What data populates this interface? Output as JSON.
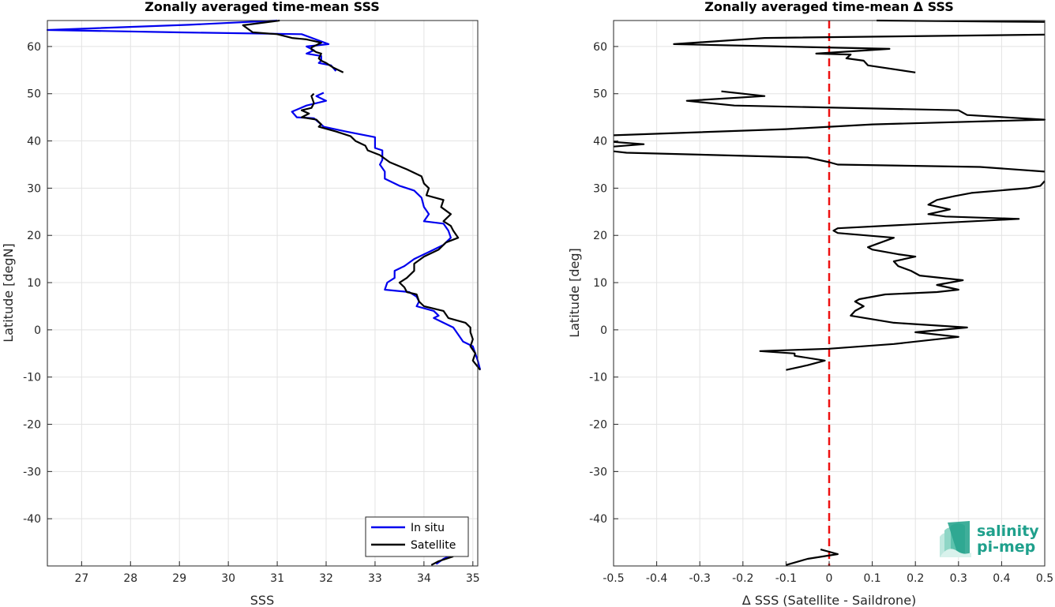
{
  "chart_data": [
    {
      "type": "line",
      "title": "Zonally averaged time-mean SSS",
      "xlabel": "SSS",
      "ylabel": "Latitude [degN]",
      "xlim": [
        26.3,
        35.1
      ],
      "ylim": [
        -50,
        65.5
      ],
      "xticks": [
        27,
        28,
        29,
        30,
        31,
        32,
        33,
        34,
        35
      ],
      "yticks": [
        -40,
        -30,
        -20,
        -10,
        0,
        10,
        20,
        30,
        40,
        50,
        60
      ],
      "grid": true,
      "legend": {
        "placement": "bottom-right",
        "entries": [
          "In situ",
          "Satellite"
        ]
      },
      "series": [
        {
          "name": "In situ",
          "color": "#0000ee",
          "segments": [
            [
              [
                31.0,
                65.5
              ],
              [
                29.2,
                64.6
              ],
              [
                26.3,
                63.5
              ],
              [
                29.0,
                63.0
              ],
              [
                31.5,
                62.6
              ],
              [
                32.05,
                60.5
              ],
              [
                31.6,
                60.0
              ],
              [
                31.75,
                59.2
              ],
              [
                31.6,
                58.5
              ],
              [
                31.9,
                58.0
              ],
              [
                31.9,
                57.0
              ],
              [
                31.85,
                56.5
              ],
              [
                32.1,
                56.0
              ],
              [
                32.2,
                54.8
              ]
            ],
            [
              [
                31.95,
                50.2
              ],
              [
                31.8,
                49.5
              ],
              [
                32.0,
                48.5
              ],
              [
                31.6,
                47.5
              ],
              [
                31.3,
                46.2
              ],
              [
                31.4,
                45.0
              ],
              [
                31.75,
                44.8
              ],
              [
                31.9,
                43.5
              ],
              [
                31.95,
                43.0
              ],
              [
                32.4,
                42.0
              ],
              [
                33.0,
                40.8
              ],
              [
                33.0,
                38.5
              ],
              [
                33.15,
                38.0
              ],
              [
                33.15,
                36.0
              ],
              [
                33.1,
                35.0
              ],
              [
                33.2,
                33.5
              ],
              [
                33.2,
                32.0
              ],
              [
                33.5,
                30.5
              ],
              [
                33.8,
                29.5
              ],
              [
                33.95,
                28.0
              ],
              [
                34.0,
                26.0
              ],
              [
                34.1,
                24.5
              ],
              [
                34.0,
                23.0
              ],
              [
                34.4,
                22.5
              ],
              [
                34.5,
                21.0
              ],
              [
                34.55,
                19.5
              ],
              [
                34.4,
                18.0
              ],
              [
                34.1,
                16.5
              ],
              [
                33.8,
                15.0
              ],
              [
                33.6,
                13.5
              ],
              [
                33.4,
                12.5
              ],
              [
                33.4,
                11.0
              ],
              [
                33.25,
                10.0
              ],
              [
                33.2,
                8.5
              ],
              [
                33.7,
                8.0
              ],
              [
                33.85,
                7.0
              ],
              [
                33.9,
                6.0
              ],
              [
                33.85,
                5.0
              ],
              [
                34.2,
                4.0
              ],
              [
                34.3,
                3.0
              ],
              [
                34.2,
                2.5
              ],
              [
                34.4,
                1.5
              ],
              [
                34.6,
                0.5
              ],
              [
                34.7,
                -1.0
              ],
              [
                34.8,
                -2.5
              ],
              [
                35.0,
                -3.5
              ],
              [
                35.05,
                -5.0
              ],
              [
                35.1,
                -6.5
              ],
              [
                35.15,
                -8.5
              ]
            ],
            [
              [
                34.55,
                -47.8
              ],
              [
                34.4,
                -48.5
              ],
              [
                34.25,
                -49.6
              ]
            ]
          ]
        },
        {
          "name": "Satellite",
          "color": "#000000",
          "segments": [
            [
              [
                31.05,
                65.5
              ],
              [
                30.3,
                64.5
              ],
              [
                30.5,
                63.0
              ],
              [
                31.0,
                62.6
              ],
              [
                31.3,
                61.8
              ],
              [
                31.6,
                61.5
              ],
              [
                31.9,
                60.8
              ],
              [
                31.7,
                59.8
              ],
              [
                31.7,
                59.4
              ],
              [
                31.8,
                58.8
              ],
              [
                31.9,
                58.5
              ],
              [
                31.85,
                57.5
              ],
              [
                31.9,
                57.0
              ],
              [
                32.0,
                56.5
              ],
              [
                32.15,
                55.5
              ],
              [
                32.35,
                54.5
              ]
            ],
            [
              [
                31.75,
                50.0
              ],
              [
                31.7,
                49.5
              ],
              [
                31.75,
                48.0
              ],
              [
                31.7,
                47.0
              ],
              [
                31.5,
                46.5
              ],
              [
                31.65,
                45.8
              ],
              [
                31.5,
                45.0
              ],
              [
                31.8,
                44.5
              ],
              [
                31.9,
                43.5
              ],
              [
                31.85,
                43.0
              ],
              [
                32.2,
                42.0
              ],
              [
                32.5,
                41.0
              ],
              [
                32.6,
                40.0
              ],
              [
                32.8,
                39.0
              ],
              [
                32.85,
                38.0
              ],
              [
                33.1,
                37.0
              ],
              [
                33.3,
                35.5
              ],
              [
                33.65,
                34.0
              ],
              [
                33.95,
                32.5
              ],
              [
                34.0,
                31.0
              ],
              [
                34.1,
                30.0
              ],
              [
                34.05,
                28.5
              ],
              [
                34.4,
                27.5
              ],
              [
                34.35,
                26.0
              ],
              [
                34.55,
                24.5
              ],
              [
                34.4,
                23.0
              ],
              [
                34.55,
                22.0
              ],
              [
                34.6,
                21.0
              ],
              [
                34.7,
                19.5
              ],
              [
                34.45,
                18.5
              ],
              [
                34.3,
                17.0
              ],
              [
                34.0,
                15.5
              ],
              [
                33.8,
                14.0
              ],
              [
                33.8,
                12.5
              ],
              [
                33.65,
                11.0
              ],
              [
                33.5,
                10.0
              ],
              [
                33.6,
                9.0
              ],
              [
                33.65,
                8.0
              ],
              [
                33.85,
                7.5
              ],
              [
                33.9,
                6.0
              ],
              [
                34.0,
                5.0
              ],
              [
                34.4,
                4.0
              ],
              [
                34.5,
                2.5
              ],
              [
                34.85,
                1.5
              ],
              [
                34.95,
                0.5
              ],
              [
                34.95,
                -0.5
              ],
              [
                35.0,
                -2.0
              ],
              [
                34.95,
                -3.5
              ],
              [
                35.05,
                -5.0
              ],
              [
                35.0,
                -6.5
              ],
              [
                35.15,
                -8.5
              ]
            ],
            [
              [
                34.6,
                -48.0
              ],
              [
                34.3,
                -49.0
              ],
              [
                34.15,
                -49.8
              ]
            ]
          ]
        }
      ]
    },
    {
      "type": "line",
      "title": "Zonally averaged time-mean Δ SSS",
      "xlabel": "Δ SSS (Satellite - Saildrone)",
      "ylabel": "Latitude [deg]",
      "xlim": [
        -0.5,
        0.5
      ],
      "ylim": [
        -50,
        65.5
      ],
      "xticks": [
        -0.5,
        -0.4,
        -0.3,
        -0.2,
        -0.1,
        0,
        0.1,
        0.2,
        0.3,
        0.4,
        0.5
      ],
      "xticklabels": [
        "-0.5",
        "-0.4",
        "-0.3",
        "-0.2",
        "-0.1",
        "0",
        "0.1",
        "0.2",
        "0.3",
        "0.4",
        "0.5"
      ],
      "yticks": [
        -40,
        -30,
        -20,
        -10,
        0,
        10,
        20,
        30,
        40,
        50,
        60
      ],
      "grid": true,
      "reference_line": {
        "x": 0,
        "color": "#ee1111",
        "style": "dashed"
      },
      "series": [
        {
          "name": "",
          "color": "#000000",
          "segments": [
            [
              [
                0.11,
                65.5
              ],
              [
                0.5,
                65.2
              ]
            ],
            [
              [
                0.5,
                62.5
              ],
              [
                -0.15,
                61.8
              ],
              [
                -0.36,
                60.5
              ],
              [
                0.14,
                59.5
              ],
              [
                -0.03,
                58.5
              ],
              [
                0.05,
                58.3
              ],
              [
                0.04,
                57.5
              ],
              [
                0.08,
                57.0
              ],
              [
                0.09,
                56.0
              ],
              [
                0.2,
                54.5
              ]
            ],
            [
              [
                -0.25,
                50.5
              ],
              [
                -0.15,
                49.5
              ],
              [
                -0.33,
                48.5
              ],
              [
                -0.22,
                47.5
              ],
              [
                0.3,
                46.5
              ],
              [
                0.32,
                45.5
              ],
              [
                0.5,
                44.5
              ],
              [
                0.1,
                43.5
              ],
              [
                -0.1,
                42.5
              ],
              [
                -0.5,
                41.2
              ]
            ],
            [
              [
                -0.5,
                39.8
              ],
              [
                -0.43,
                39.3
              ],
              [
                -0.5,
                38.8
              ]
            ],
            [
              [
                -0.5,
                37.8
              ],
              [
                -0.47,
                37.5
              ],
              [
                -0.05,
                36.5
              ],
              [
                0.0,
                35.5
              ],
              [
                0.02,
                35.0
              ],
              [
                0.35,
                34.5
              ],
              [
                0.5,
                33.5
              ]
            ],
            [
              [
                0.5,
                31.5
              ],
              [
                0.49,
                30.5
              ],
              [
                0.46,
                30.0
              ],
              [
                0.33,
                29.0
              ],
              [
                0.29,
                28.3
              ],
              [
                0.25,
                27.5
              ],
              [
                0.23,
                26.5
              ],
              [
                0.28,
                25.5
              ],
              [
                0.23,
                24.5
              ],
              [
                0.27,
                24.0
              ],
              [
                0.44,
                23.5
              ],
              [
                0.02,
                21.5
              ],
              [
                0.01,
                21.0
              ],
              [
                0.02,
                20.5
              ],
              [
                0.15,
                19.5
              ],
              [
                0.09,
                17.5
              ],
              [
                0.1,
                17.0
              ],
              [
                0.16,
                16.0
              ],
              [
                0.2,
                15.5
              ],
              [
                0.15,
                14.5
              ],
              [
                0.16,
                13.5
              ],
              [
                0.19,
                12.5
              ],
              [
                0.21,
                11.5
              ],
              [
                0.31,
                10.5
              ],
              [
                0.25,
                9.5
              ],
              [
                0.3,
                8.5
              ],
              [
                0.25,
                8.0
              ],
              [
                0.13,
                7.5
              ],
              [
                0.07,
                6.5
              ],
              [
                0.06,
                6.0
              ],
              [
                0.08,
                5.0
              ],
              [
                0.06,
                4.0
              ],
              [
                0.05,
                3.0
              ],
              [
                0.15,
                1.5
              ],
              [
                0.32,
                0.5
              ],
              [
                0.2,
                -0.5
              ],
              [
                0.3,
                -1.5
              ],
              [
                0.15,
                -3.0
              ],
              [
                0.0,
                -4.0
              ],
              [
                -0.16,
                -4.5
              ],
              [
                -0.08,
                -5.0
              ],
              [
                -0.08,
                -5.5
              ],
              [
                -0.01,
                -6.5
              ],
              [
                -0.05,
                -7.5
              ],
              [
                -0.1,
                -8.5
              ]
            ],
            [
              [
                -0.02,
                -46.5
              ],
              [
                0.02,
                -47.5
              ],
              [
                -0.05,
                -48.5
              ],
              [
                -0.1,
                -49.8
              ]
            ]
          ]
        }
      ]
    }
  ],
  "logo": {
    "line1": "salinity",
    "line2": "pi-mep",
    "color": "#1fa08c"
  }
}
